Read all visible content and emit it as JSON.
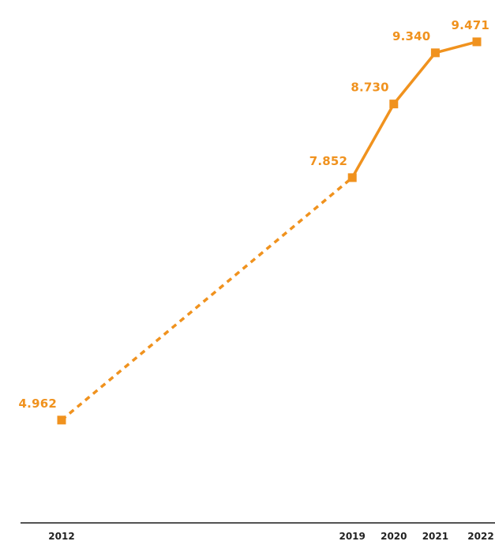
{
  "chart_data": {
    "type": "line",
    "title": "",
    "xlabel": "",
    "ylabel": "",
    "categories": [
      "2012",
      "2019",
      "2020",
      "2021",
      "2022"
    ],
    "x": [
      2012,
      2019,
      2020,
      2021,
      2022
    ],
    "series": [
      {
        "values": [
          4962,
          7852,
          8730,
          9340,
          9471
        ],
        "labels": [
          "4.962",
          "7.852",
          "8.730",
          "9.340",
          "9.471"
        ],
        "dashed_segments": [
          [
            2012,
            2019
          ]
        ],
        "color": "#f0921e"
      }
    ],
    "ylim": [
      4000,
      9800
    ],
    "grid": false,
    "legend": "none",
    "x_axis_color": "#1a1a1a",
    "tick_label_color": "#222222"
  }
}
